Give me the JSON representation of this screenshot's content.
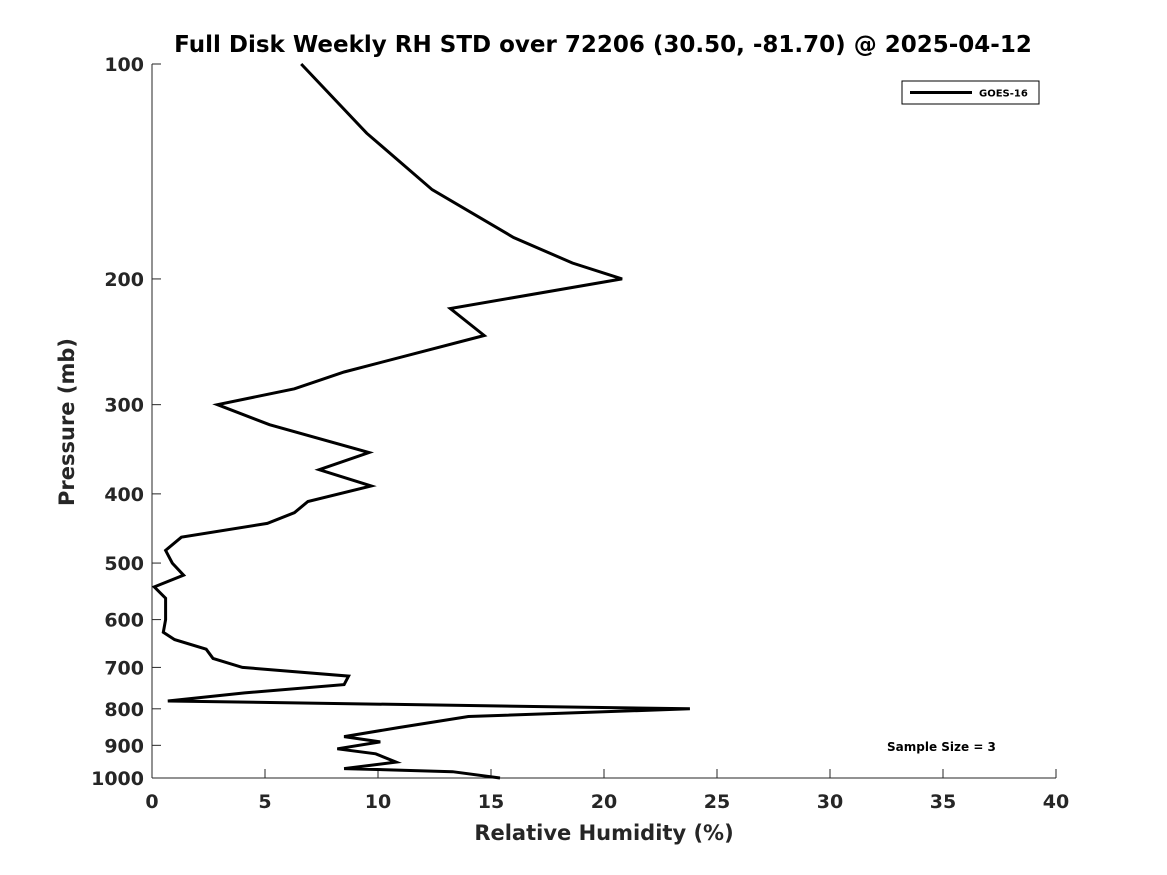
{
  "chart_data": {
    "type": "line",
    "title": "Full Disk Weekly RH STD over 72206 (30.50, -81.70) @ 2025-04-12",
    "xlabel": "Relative Humidity (%)",
    "ylabel": "Pressure (mb)",
    "xlim": [
      0,
      40
    ],
    "ylim": [
      100,
      1000
    ],
    "yscale": "log",
    "yreversed": true,
    "xticks": [
      0,
      5,
      10,
      15,
      20,
      25,
      30,
      35,
      40
    ],
    "xtick_labels": [
      "0",
      "5",
      "10",
      "15",
      "20",
      "25",
      "30",
      "35",
      "40"
    ],
    "yticks": [
      100,
      200,
      300,
      400,
      500,
      600,
      700,
      800,
      900,
      1000
    ],
    "ytick_labels": [
      "100",
      "200",
      "300",
      "400",
      "500",
      "600",
      "700",
      "800",
      "900",
      "1000"
    ],
    "grid": false,
    "legend": {
      "position": "top-right",
      "entries": [
        "GOES-16"
      ]
    },
    "annotation": "Sample Size = 3",
    "series": [
      {
        "name": "GOES-16",
        "color": "#000000",
        "points": [
          [
            6.6,
            100
          ],
          [
            9.5,
            125
          ],
          [
            12.4,
            150
          ],
          [
            16.0,
            175
          ],
          [
            18.6,
            190
          ],
          [
            20.8,
            200
          ],
          [
            13.2,
            220
          ],
          [
            14.7,
            240
          ],
          [
            8.5,
            270
          ],
          [
            6.3,
            285
          ],
          [
            2.9,
            300
          ],
          [
            5.2,
            320
          ],
          [
            9.6,
            350
          ],
          [
            7.4,
            370
          ],
          [
            9.7,
            390
          ],
          [
            6.9,
            410
          ],
          [
            6.3,
            425
          ],
          [
            5.1,
            440
          ],
          [
            1.3,
            460
          ],
          [
            0.6,
            480
          ],
          [
            0.9,
            500
          ],
          [
            1.4,
            520
          ],
          [
            0.1,
            540
          ],
          [
            0.6,
            560
          ],
          [
            0.6,
            600
          ],
          [
            0.5,
            625
          ],
          [
            1.0,
            640
          ],
          [
            2.4,
            660
          ],
          [
            2.7,
            680
          ],
          [
            4.0,
            700
          ],
          [
            8.7,
            720
          ],
          [
            8.5,
            740
          ],
          [
            4.1,
            760
          ],
          [
            0.7,
            780
          ],
          [
            23.8,
            800
          ],
          [
            14.0,
            820
          ],
          [
            10.9,
            850
          ],
          [
            8.5,
            875
          ],
          [
            10.1,
            890
          ],
          [
            8.2,
            910
          ],
          [
            9.9,
            925
          ],
          [
            10.8,
            950
          ],
          [
            8.5,
            970
          ],
          [
            13.3,
            980
          ],
          [
            15.4,
            1000
          ]
        ]
      }
    ]
  }
}
